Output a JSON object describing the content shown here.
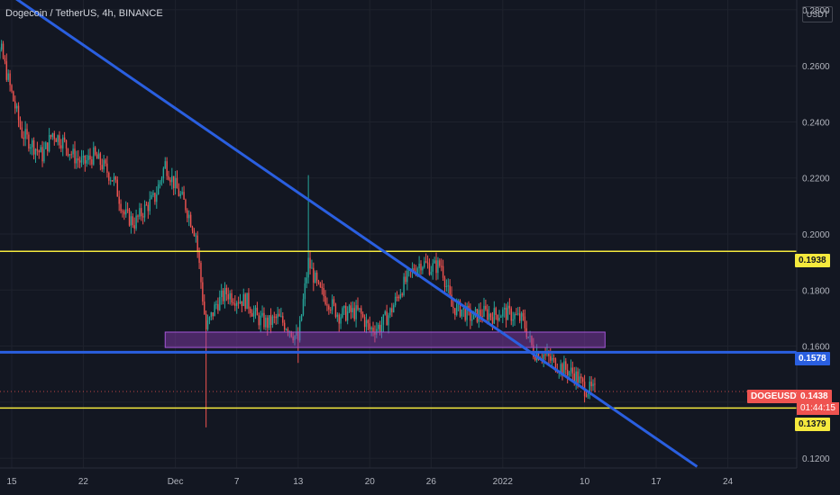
{
  "header": {
    "title": "Dogecoin / TetherUS, 4h, BINANCE"
  },
  "price_axis": {
    "currency": "USDT",
    "ticks": [
      "0.2800",
      "0.2600",
      "0.2400",
      "0.2200",
      "0.2000",
      "0.1800",
      "0.1600",
      "0.1400",
      "0.1200"
    ]
  },
  "time_axis": {
    "ticks": [
      "15",
      "22",
      "Dec",
      "7",
      "13",
      "20",
      "26",
      "2022",
      "10",
      "17",
      "24"
    ]
  },
  "markers": {
    "level_top": "0.1938",
    "level_mid": "0.1578",
    "level_bottom": "0.1379",
    "current_price": "0.1438",
    "symbol": "DOGEUSDT",
    "countdown": "01:44:15"
  },
  "colors": {
    "background": "#131722",
    "up": "#26a69a",
    "down": "#ef5350",
    "yellow_line": "#f5e93d",
    "blue_line": "#2a5fe0",
    "zone": "#8e3fb8"
  },
  "chart_data": {
    "type": "candlestick",
    "symbol": "DOGEUSDT",
    "interval": "4h",
    "exchange": "BINANCE",
    "ylim": [
      0.1165,
      0.2835
    ],
    "horizontal_levels": [
      0.1938,
      0.1578,
      0.1379
    ],
    "current_price": 0.1438,
    "trendline": {
      "from": [
        "Nov 13",
        0.29
      ],
      "to": [
        "Jan 21",
        0.117
      ]
    },
    "zone": {
      "from": "Nov 30",
      "to": "Jan 12",
      "low": 0.1595,
      "high": 0.165
    },
    "price_path": [
      [
        "Nov 12",
        0.262
      ],
      [
        "Nov 14",
        0.265
      ],
      [
        "Nov 15",
        0.25
      ],
      [
        "Nov 16",
        0.236
      ],
      [
        "Nov 17",
        0.232
      ],
      [
        "Nov 18",
        0.228
      ],
      [
        "Nov 19",
        0.236
      ],
      [
        "Nov 20",
        0.233
      ],
      [
        "Nov 21",
        0.228
      ],
      [
        "Nov 22",
        0.225
      ],
      [
        "Nov 23",
        0.228
      ],
      [
        "Nov 24",
        0.224
      ],
      [
        "Nov 25",
        0.219
      ],
      [
        "Nov 26",
        0.207
      ],
      [
        "Nov 27",
        0.204
      ],
      [
        "Nov 28",
        0.209
      ],
      [
        "Nov 29",
        0.213
      ],
      [
        "Nov 30",
        0.225
      ],
      [
        "Dec 1",
        0.217
      ],
      [
        "Dec 2",
        0.21
      ],
      [
        "Dec 3",
        0.2
      ],
      [
        "Dec 4",
        0.166
      ],
      [
        "Dec 5",
        0.175
      ],
      [
        "Dec 6",
        0.179
      ],
      [
        "Dec 7",
        0.177
      ],
      [
        "Dec 8",
        0.176
      ],
      [
        "Dec 9",
        0.17
      ],
      [
        "Dec 10",
        0.168
      ],
      [
        "Dec 11",
        0.17
      ],
      [
        "Dec 12",
        0.167
      ],
      [
        "Dec 13",
        0.162
      ],
      [
        "Dec 14",
        0.19
      ],
      [
        "Dec 15",
        0.18
      ],
      [
        "Dec 16",
        0.176
      ],
      [
        "Dec 17",
        0.171
      ],
      [
        "Dec 18",
        0.172
      ],
      [
        "Dec 19",
        0.172
      ],
      [
        "Dec 20",
        0.166
      ],
      [
        "Dec 21",
        0.167
      ],
      [
        "Dec 22",
        0.172
      ],
      [
        "Dec 23",
        0.18
      ],
      [
        "Dec 24",
        0.186
      ],
      [
        "Dec 25",
        0.19
      ],
      [
        "Dec 26",
        0.188
      ],
      [
        "Dec 27",
        0.189
      ],
      [
        "Dec 28",
        0.174
      ],
      [
        "Dec 29",
        0.173
      ],
      [
        "Dec 30",
        0.17
      ],
      [
        "Dec 31",
        0.172
      ],
      [
        "Jan 1",
        0.171
      ],
      [
        "Jan 2",
        0.172
      ],
      [
        "Jan 3",
        0.171
      ],
      [
        "Jan 4",
        0.169
      ],
      [
        "Jan 5",
        0.158
      ],
      [
        "Jan 6",
        0.157
      ],
      [
        "Jan 7",
        0.154
      ],
      [
        "Jan 8",
        0.152
      ],
      [
        "Jan 9",
        0.15
      ],
      [
        "Jan 10",
        0.145
      ],
      [
        "Jan 11",
        0.1438
      ]
    ]
  }
}
